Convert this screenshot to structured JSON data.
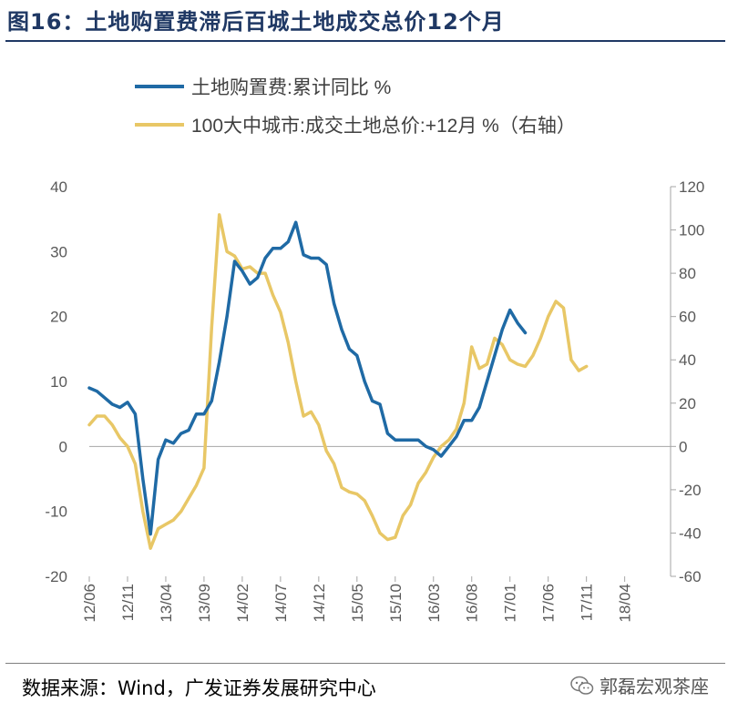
{
  "header": {
    "title": "图16：土地购置费滞后百城土地成交总价12个月"
  },
  "footer": {
    "source": "数据来源：Wind，广发证券发展研究中心",
    "watermark": "郭磊宏观茶座"
  },
  "colors": {
    "title": "#1f3864",
    "series1": "#1f6aa5",
    "series2": "#e8c766",
    "axis": "#a6a6a6",
    "tick": "#595959"
  },
  "chart_data": {
    "type": "line",
    "title": "",
    "legend_position": "top-left",
    "left_axis": {
      "ylim": [
        -20,
        40
      ],
      "ticks": [
        40,
        30,
        20,
        10,
        0,
        -10,
        -20
      ]
    },
    "right_axis": {
      "ylim": [
        -60,
        120
      ],
      "ticks": [
        120,
        100,
        80,
        60,
        40,
        20,
        0,
        -20,
        -40,
        -60
      ]
    },
    "x_ticks": [
      "12/06",
      "12/11",
      "13/04",
      "13/09",
      "14/02",
      "14/07",
      "14/12",
      "15/05",
      "15/10",
      "16/03",
      "16/08",
      "17/01",
      "17/06",
      "17/11",
      "18/04"
    ],
    "x_range_months": [
      0,
      76
    ],
    "series": [
      {
        "name": "土地购置费:累计同比 %",
        "axis": "left",
        "points": [
          [
            0,
            9
          ],
          [
            1,
            8.5
          ],
          [
            2,
            7.5
          ],
          [
            3,
            6.5
          ],
          [
            4,
            6
          ],
          [
            5,
            6.8
          ],
          [
            6,
            5
          ],
          [
            7,
            -5
          ],
          [
            8,
            -13.5
          ],
          [
            9,
            -2
          ],
          [
            10,
            1
          ],
          [
            11,
            0.5
          ],
          [
            12,
            2
          ],
          [
            13,
            2.5
          ],
          [
            14,
            5
          ],
          [
            15,
            5
          ],
          [
            16,
            7
          ],
          [
            17,
            13
          ],
          [
            18,
            20
          ],
          [
            19,
            28.5
          ],
          [
            20,
            27
          ],
          [
            21,
            25
          ],
          [
            22,
            26
          ],
          [
            23,
            29
          ],
          [
            24,
            30.5
          ],
          [
            25,
            30.5
          ],
          [
            26,
            31.5
          ],
          [
            27,
            34.5
          ],
          [
            28,
            29.5
          ],
          [
            29,
            29
          ],
          [
            30,
            29
          ],
          [
            31,
            28
          ],
          [
            32,
            22
          ],
          [
            33,
            18
          ],
          [
            34,
            15
          ],
          [
            35,
            14
          ],
          [
            36,
            10
          ],
          [
            37,
            7
          ],
          [
            38,
            6.5
          ],
          [
            39,
            2
          ],
          [
            40,
            1
          ],
          [
            41,
            1
          ],
          [
            42,
            1
          ],
          [
            43,
            1
          ],
          [
            44,
            0
          ],
          [
            45,
            -0.5
          ],
          [
            46,
            -1.5
          ],
          [
            47,
            0
          ],
          [
            48,
            1.5
          ],
          [
            49,
            4
          ],
          [
            50,
            4
          ],
          [
            51,
            6
          ],
          [
            52,
            10
          ],
          [
            53,
            14
          ],
          [
            54,
            18
          ],
          [
            55,
            21
          ],
          [
            56,
            19
          ],
          [
            57,
            17.5
          ]
        ]
      },
      {
        "name": "100大中城市:成交土地总价:+12月 %（右轴）",
        "axis": "right",
        "points": [
          [
            0,
            10
          ],
          [
            1,
            14
          ],
          [
            2,
            14
          ],
          [
            3,
            10
          ],
          [
            4,
            4
          ],
          [
            5,
            0
          ],
          [
            6,
            -8
          ],
          [
            7,
            -30
          ],
          [
            8,
            -47
          ],
          [
            9,
            -38
          ],
          [
            10,
            -36
          ],
          [
            11,
            -34
          ],
          [
            12,
            -30
          ],
          [
            13,
            -24
          ],
          [
            14,
            -18
          ],
          [
            15,
            -10
          ],
          [
            16,
            55
          ],
          [
            17,
            107
          ],
          [
            18,
            90
          ],
          [
            19,
            88
          ],
          [
            20,
            82
          ],
          [
            21,
            83
          ],
          [
            22,
            80
          ],
          [
            23,
            80
          ],
          [
            24,
            70
          ],
          [
            25,
            62
          ],
          [
            26,
            48
          ],
          [
            27,
            30
          ],
          [
            28,
            14
          ],
          [
            29,
            16
          ],
          [
            30,
            10
          ],
          [
            31,
            -2
          ],
          [
            32,
            -8
          ],
          [
            33,
            -19
          ],
          [
            34,
            -21
          ],
          [
            35,
            -22
          ],
          [
            36,
            -25
          ],
          [
            37,
            -32
          ],
          [
            38,
            -40
          ],
          [
            39,
            -43
          ],
          [
            40,
            -42
          ],
          [
            41,
            -32
          ],
          [
            42,
            -27
          ],
          [
            43,
            -17
          ],
          [
            44,
            -12
          ],
          [
            45,
            -5
          ],
          [
            46,
            0
          ],
          [
            47,
            3
          ],
          [
            48,
            8
          ],
          [
            49,
            20
          ],
          [
            50,
            46
          ],
          [
            51,
            36
          ],
          [
            52,
            38
          ],
          [
            53,
            50
          ],
          [
            54,
            47
          ],
          [
            55,
            40
          ],
          [
            56,
            38
          ],
          [
            57,
            37
          ],
          [
            58,
            42
          ],
          [
            59,
            50
          ],
          [
            60,
            60
          ],
          [
            61,
            67
          ],
          [
            62,
            64
          ],
          [
            63,
            40
          ],
          [
            64,
            35
          ],
          [
            65,
            37
          ]
        ]
      }
    ]
  }
}
